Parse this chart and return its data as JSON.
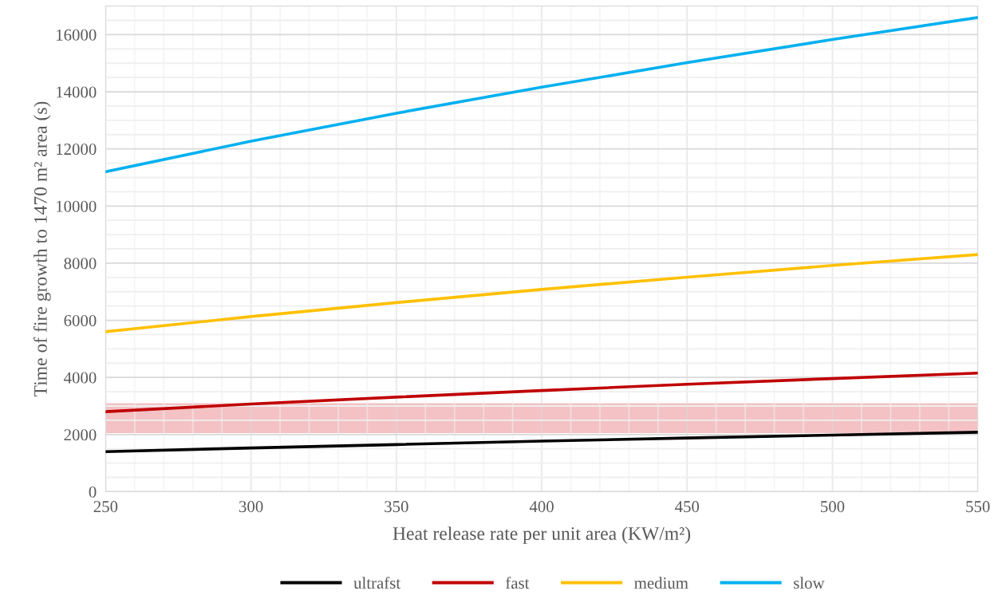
{
  "chart_data": {
    "type": "line",
    "xlabel": "Heat release rate per unit area (KW/m²)",
    "ylabel": "Time of fire growth to 1470 m² area (s)",
    "x": [
      250,
      300,
      350,
      400,
      450,
      500,
      550
    ],
    "series": [
      {
        "name": "ultrafst",
        "color": "#000000",
        "values": [
          1400,
          1530,
          1650,
          1770,
          1880,
          1980,
          2080
        ]
      },
      {
        "name": "fast",
        "color": "#c00000",
        "values": [
          2800,
          3070,
          3310,
          3540,
          3760,
          3960,
          4150
        ]
      },
      {
        "name": "medium",
        "color": "#ffc000",
        "values": [
          5600,
          6130,
          6620,
          7080,
          7510,
          7920,
          8300
        ]
      },
      {
        "name": "slow",
        "color": "#00b0f0",
        "values": [
          11200,
          12270,
          13250,
          14160,
          15020,
          15830,
          16600
        ]
      }
    ],
    "bands": [
      {
        "axis": "y",
        "from": 2050,
        "to": 3100,
        "color": "#f4c2c4"
      }
    ],
    "xlim": [
      250,
      550
    ],
    "ylim": [
      0,
      17000
    ],
    "xticks": [
      250,
      {
        "value": 260,
        "label": null
      },
      {
        "value": 270,
        "label": null
      },
      {
        "value": 280,
        "label": null
      },
      {
        "value": 290,
        "label": null
      },
      300,
      {
        "value": 310,
        "label": null
      },
      {
        "value": 320,
        "label": null
      },
      {
        "value": 330,
        "label": null
      },
      {
        "value": 340,
        "label": null
      },
      350,
      {
        "value": 360,
        "label": null
      },
      {
        "value": 370,
        "label": null
      },
      {
        "value": 380,
        "label": null
      },
      {
        "value": 390,
        "label": null
      },
      400,
      {
        "value": 410,
        "label": null
      },
      {
        "value": 420,
        "label": null
      },
      {
        "value": 430,
        "label": null
      },
      {
        "value": 440,
        "label": null
      },
      450,
      {
        "value": 460,
        "label": null
      },
      {
        "value": 470,
        "label": null
      },
      {
        "value": 480,
        "label": null
      },
      {
        "value": 490,
        "label": null
      },
      500,
      {
        "value": 510,
        "label": null
      },
      {
        "value": 520,
        "label": null
      },
      {
        "value": 530,
        "label": null
      },
      {
        "value": 540,
        "label": null
      },
      550
    ],
    "yticks": [
      0,
      {
        "value": 500,
        "label": null
      },
      {
        "value": 1000,
        "label": null
      },
      {
        "value": 1500,
        "label": null
      },
      2000,
      {
        "value": 2500,
        "label": null
      },
      {
        "value": 3000,
        "label": null
      },
      {
        "value": 3500,
        "label": null
      },
      4000,
      {
        "value": 4500,
        "label": null
      },
      {
        "value": 5000,
        "label": null
      },
      {
        "value": 5500,
        "label": null
      },
      6000,
      {
        "value": 6500,
        "label": null
      },
      {
        "value": 7000,
        "label": null
      },
      {
        "value": 7500,
        "label": null
      },
      8000,
      {
        "value": 8500,
        "label": null
      },
      {
        "value": 9000,
        "label": null
      },
      {
        "value": 9500,
        "label": null
      },
      10000,
      {
        "value": 10500,
        "label": null
      },
      {
        "value": 11000,
        "label": null
      },
      {
        "value": 11500,
        "label": null
      },
      12000,
      {
        "value": 12500,
        "label": null
      },
      {
        "value": 13000,
        "label": null
      },
      {
        "value": 13500,
        "label": null
      },
      14000,
      {
        "value": 14500,
        "label": null
      },
      {
        "value": 15000,
        "label": null
      },
      {
        "value": 15500,
        "label": null
      },
      16000,
      {
        "value": 16500,
        "label": null
      }
    ],
    "grid": true,
    "legend": "bottom",
    "marker": "none",
    "line_style": "solid"
  }
}
